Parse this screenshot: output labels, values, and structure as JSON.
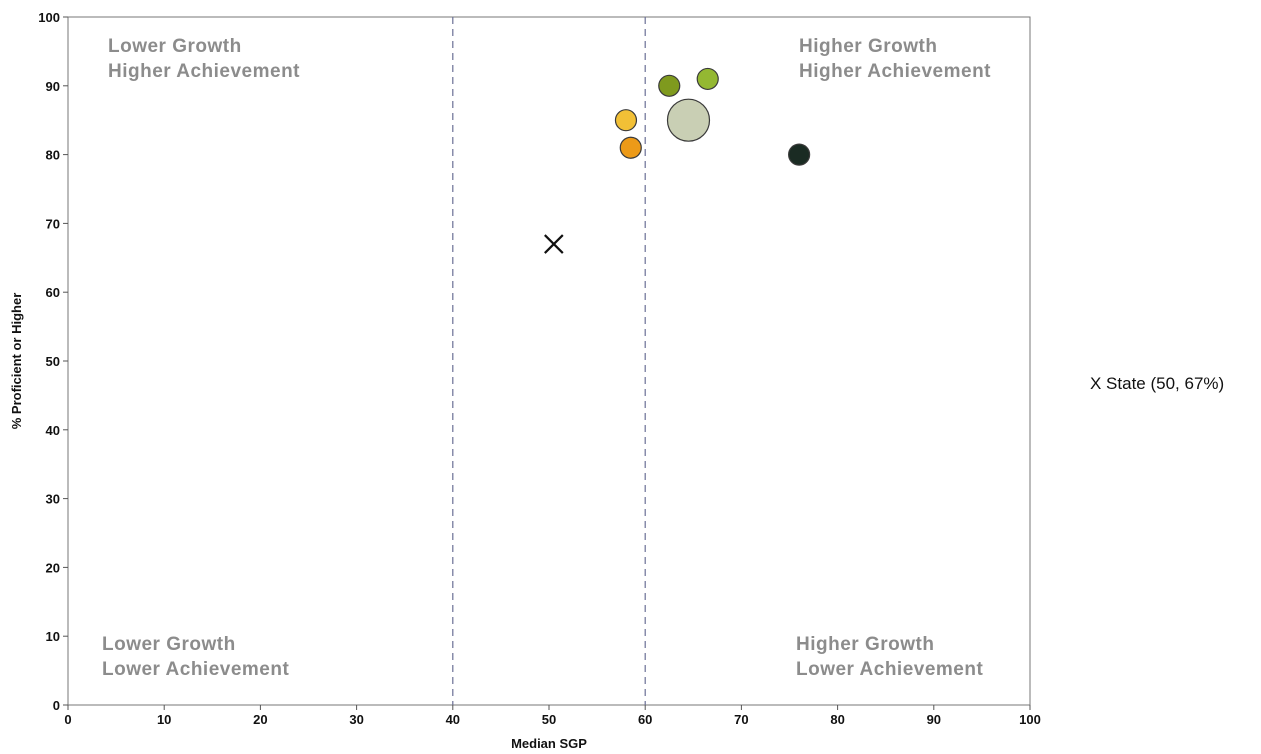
{
  "chart_data": {
    "type": "scatter",
    "title": "",
    "xlabel": "Median SGP",
    "ylabel": "% Proficient or Higher",
    "xlim": [
      0,
      100
    ],
    "ylim": [
      0,
      100
    ],
    "xticks": [
      "0",
      "10",
      "20",
      "30",
      "40",
      "50",
      "60",
      "70",
      "80",
      "90",
      "100"
    ],
    "yticks": [
      "0",
      "10",
      "20",
      "30",
      "40",
      "50",
      "60",
      "70",
      "80",
      "90",
      "100"
    ],
    "grid": false,
    "reference_lines_x": [
      40,
      60
    ],
    "reference_line_style": "dashed",
    "quadrant_labels": {
      "top_left": [
        "Lower Growth",
        "Higher Achievement"
      ],
      "top_right": [
        "Higher Growth",
        "Higher Achievement"
      ],
      "bottom_left": [
        "Lower Growth",
        "Lower Achievement"
      ],
      "bottom_right": [
        "Higher Growth",
        "Lower Achievement"
      ]
    },
    "points": [
      {
        "x": 58,
        "y": 85,
        "size": "small",
        "color": "#f2c036"
      },
      {
        "x": 58.5,
        "y": 81,
        "size": "small",
        "color": "#ec9a18"
      },
      {
        "x": 62.5,
        "y": 90,
        "size": "small",
        "color": "#7f9a1e"
      },
      {
        "x": 66.5,
        "y": 91,
        "size": "small",
        "color": "#94b832"
      },
      {
        "x": 64.5,
        "y": 85,
        "size": "large",
        "color": "#c9cfb4"
      },
      {
        "x": 76,
        "y": 80,
        "size": "small",
        "color": "#1a2b23"
      }
    ],
    "state_marker": {
      "x": 50.5,
      "y": 67,
      "symbol": "X"
    },
    "legend": {
      "text": "X State (50, 67%)",
      "placement": "right"
    }
  }
}
